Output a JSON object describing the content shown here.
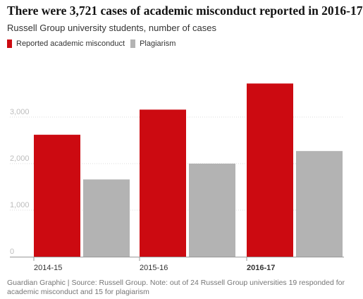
{
  "colors": {
    "misconduct": "#cc0a11",
    "plagiarism": "#b3b3b3",
    "grid": "#dcdcdc",
    "tick_text": "#bdbdbd"
  },
  "chart_data": {
    "type": "bar",
    "title": "There were 3,721 cases of academic misconduct reported in 2016-17",
    "subtitle": "Russell Group university students, number of cases",
    "categories": [
      "2014-15",
      "2015-16",
      "2016-17"
    ],
    "series": [
      {
        "name": "Reported academic misconduct",
        "values": [
          2620,
          3160,
          3721
        ]
      },
      {
        "name": "Plagiarism",
        "values": [
          1660,
          2000,
          2270
        ]
      }
    ],
    "yticks": [
      "0",
      "1,000",
      "2,000",
      "3,000"
    ],
    "ytick_values": [
      0,
      1000,
      2000,
      3000
    ],
    "ylim": [
      0,
      4000
    ],
    "grid": true,
    "legend": "top-left",
    "source": "Guardian Graphic | Source: Russell Group. Note: out of 24 Russell Group universities 19 responded for academic misconduct and 15 for plagiarism"
  }
}
